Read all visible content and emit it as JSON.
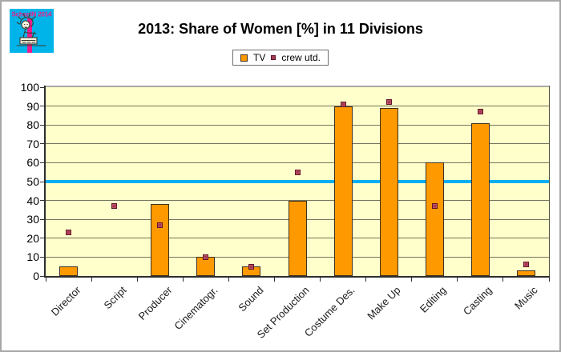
{
  "window": {
    "background": "#ffffff",
    "border_color": "#a8a8a8"
  },
  "logo": {
    "text": "SchspIN 2014",
    "bg_color": "#00b4ea",
    "accent_color": "#ec1c8d"
  },
  "header": {
    "title": "2013: Share of Women [%] in 11 Divisions"
  },
  "legend": {
    "items": [
      "TV",
      "crew utd."
    ]
  },
  "chart_data": {
    "type": "bar",
    "title": "2013: Share of Women [%] in 11 Divisions",
    "categories": [
      "Director",
      "Script",
      "Producer",
      "Cinematogr.",
      "Sound",
      "Set Production",
      "Costume Des.",
      "Make Up",
      "Editing",
      "Casting",
      "Music"
    ],
    "series": [
      {
        "name": "TV",
        "type": "column",
        "color": "#ff9900",
        "values": [
          5,
          0,
          38,
          10,
          5,
          40,
          90,
          89,
          60,
          81,
          3
        ]
      },
      {
        "name": "crew utd.",
        "type": "square-point",
        "color": "#a03a52",
        "values": [
          23,
          37,
          27,
          10,
          5,
          55,
          91,
          92,
          37,
          87,
          6
        ]
      }
    ],
    "reference_line": {
      "value": 50,
      "color": "#00aeef"
    },
    "xlabel": "",
    "ylabel": "",
    "ylim": [
      0,
      100
    ],
    "ytick_step": 10,
    "grid": true,
    "plot_bg": "#ffffcc",
    "legend_position": "top-center"
  }
}
